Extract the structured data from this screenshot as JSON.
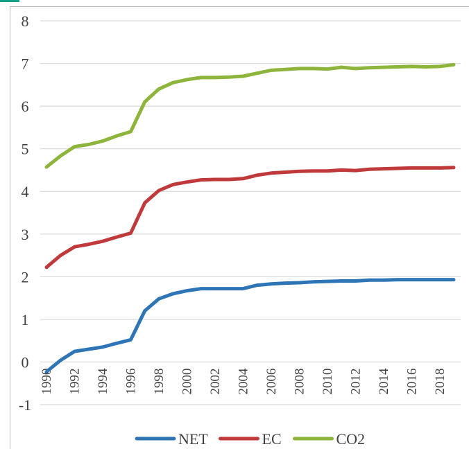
{
  "chart_data": {
    "type": "line",
    "title": "",
    "xlabel": "",
    "ylabel": "",
    "ylim": [
      -1,
      8
    ],
    "yticks": [
      "8",
      "7",
      "6",
      "5",
      "4",
      "3",
      "2",
      "1",
      "0",
      "-1"
    ],
    "x": [
      1990,
      1991,
      1992,
      1993,
      1994,
      1995,
      1996,
      1997,
      1998,
      1999,
      2000,
      2001,
      2002,
      2003,
      2004,
      2005,
      2006,
      2007,
      2008,
      2009,
      2010,
      2011,
      2012,
      2013,
      2014,
      2015,
      2016,
      2017,
      2018,
      2019
    ],
    "xticks": [
      "1990",
      "1992",
      "1994",
      "1996",
      "1998",
      "2000",
      "2002",
      "2004",
      "2006",
      "2008",
      "2010",
      "2012",
      "2014",
      "2016",
      "2018"
    ],
    "grid": true,
    "legend": "bottom",
    "series": [
      {
        "name": "NET",
        "color": "#2e75b6",
        "values": [
          -0.23,
          0.04,
          0.25,
          0.3,
          0.35,
          0.44,
          0.52,
          1.2,
          1.48,
          1.6,
          1.67,
          1.72,
          1.72,
          1.72,
          1.72,
          1.8,
          1.83,
          1.85,
          1.86,
          1.88,
          1.89,
          1.9,
          1.9,
          1.92,
          1.92,
          1.93,
          1.93,
          1.93,
          1.93,
          1.93
        ]
      },
      {
        "name": "EC",
        "color": "#c0393b",
        "values": [
          2.22,
          2.5,
          2.7,
          2.76,
          2.83,
          2.93,
          3.02,
          3.73,
          4.02,
          4.16,
          4.22,
          4.27,
          4.28,
          4.28,
          4.3,
          4.38,
          4.43,
          4.45,
          4.47,
          4.48,
          4.48,
          4.5,
          4.49,
          4.52,
          4.53,
          4.54,
          4.55,
          4.55,
          4.55,
          4.56
        ]
      },
      {
        "name": "CO2",
        "color": "#8db53c",
        "values": [
          4.57,
          4.83,
          5.05,
          5.1,
          5.18,
          5.3,
          5.4,
          6.1,
          6.4,
          6.55,
          6.62,
          6.67,
          6.67,
          6.68,
          6.7,
          6.77,
          6.84,
          6.86,
          6.88,
          6.88,
          6.87,
          6.91,
          6.88,
          6.9,
          6.91,
          6.92,
          6.93,
          6.92,
          6.93,
          6.97
        ]
      }
    ]
  }
}
